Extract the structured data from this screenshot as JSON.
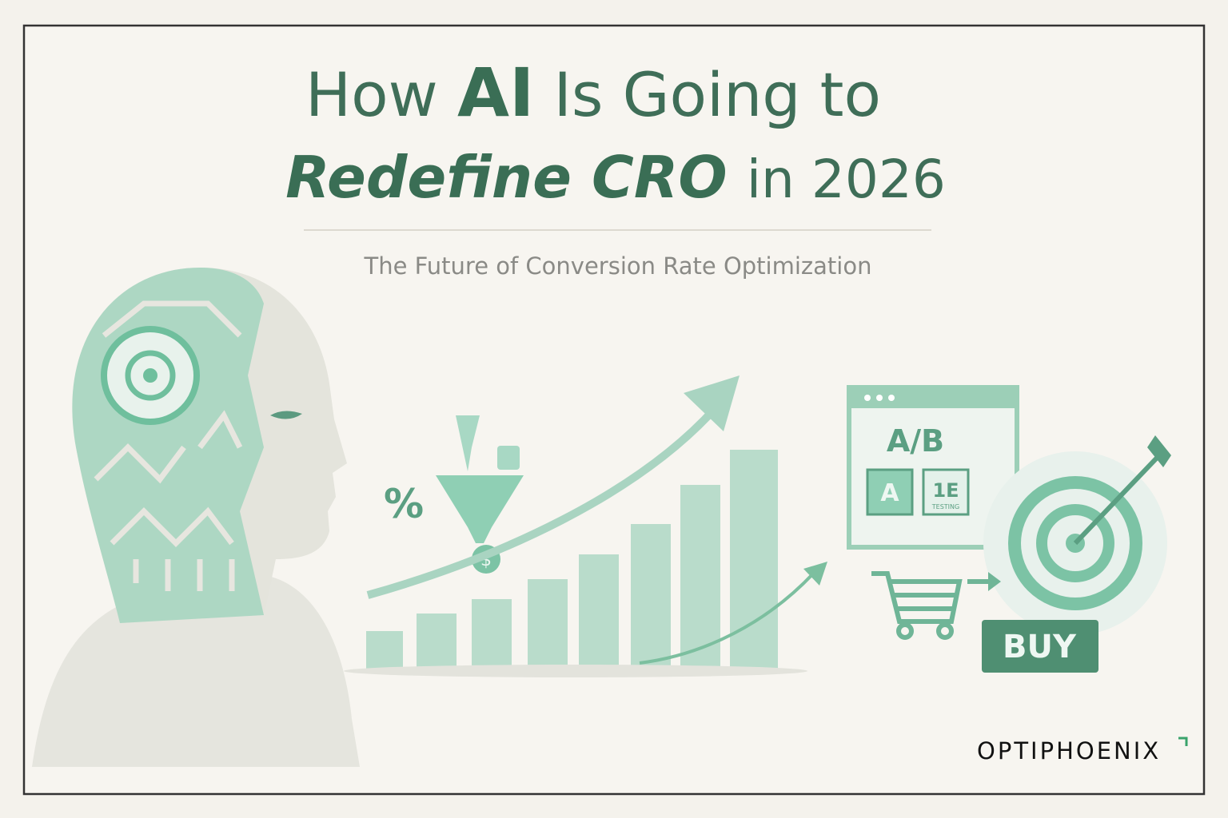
{
  "title": {
    "line1": {
      "pre": "How",
      "emphasis": "AI",
      "post": "Is Going to"
    },
    "line2": {
      "emphasis": "Redefine CRO",
      "post": "in 2026"
    }
  },
  "subtitle": "The Future of Conversion Rate Optimization",
  "illustration": {
    "percent": "%",
    "currency": "$",
    "ab_label": "A/B",
    "variant_a": "A",
    "variant_b": "1E",
    "testing": "TESTING",
    "cta": "BUY"
  },
  "brand": "OPTIPHOENIX"
}
